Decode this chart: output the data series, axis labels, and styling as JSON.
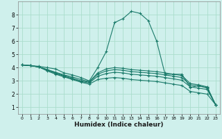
{
  "xlabel": "Humidex (Indice chaleur)",
  "bg_color": "#cff0ec",
  "grid_color": "#aaddcc",
  "line_color": "#1a7a6a",
  "xlim": [
    -0.5,
    23.5
  ],
  "ylim": [
    0.5,
    9.0
  ],
  "xticks": [
    0,
    1,
    2,
    3,
    4,
    5,
    6,
    7,
    8,
    9,
    10,
    11,
    12,
    13,
    14,
    15,
    16,
    17,
    18,
    19,
    20,
    21,
    22,
    23
  ],
  "yticks": [
    1,
    2,
    3,
    4,
    5,
    6,
    7,
    8
  ],
  "lines": [
    {
      "x": [
        0,
        1,
        2,
        3,
        4,
        5,
        6,
        7,
        8,
        9,
        10,
        11,
        12,
        13,
        14,
        15,
        16,
        17,
        18,
        19,
        20,
        21,
        22,
        23
      ],
      "y": [
        4.2,
        4.15,
        4.1,
        4.0,
        3.9,
        3.6,
        3.45,
        3.25,
        3.0,
        4.0,
        5.2,
        7.4,
        7.7,
        8.25,
        8.1,
        7.55,
        6.0,
        3.5,
        3.5,
        3.5,
        2.5,
        2.65,
        2.45,
        1.2
      ]
    },
    {
      "x": [
        0,
        1,
        2,
        3,
        4,
        5,
        6,
        7,
        8,
        9,
        10,
        11,
        12,
        13,
        14,
        15,
        16,
        17,
        18,
        19,
        20,
        21,
        22,
        23
      ],
      "y": [
        4.2,
        4.15,
        4.05,
        3.85,
        3.65,
        3.45,
        3.3,
        3.1,
        2.95,
        3.6,
        3.9,
        4.0,
        3.95,
        3.85,
        3.8,
        3.75,
        3.7,
        3.6,
        3.5,
        3.4,
        2.8,
        2.7,
        2.55,
        1.2
      ]
    },
    {
      "x": [
        0,
        1,
        2,
        3,
        4,
        5,
        6,
        7,
        8,
        9,
        10,
        11,
        12,
        13,
        14,
        15,
        16,
        17,
        18,
        19,
        20,
        21,
        22,
        23
      ],
      "y": [
        4.2,
        4.15,
        4.05,
        3.85,
        3.6,
        3.4,
        3.2,
        3.0,
        2.9,
        3.5,
        3.75,
        3.85,
        3.8,
        3.7,
        3.65,
        3.6,
        3.55,
        3.45,
        3.35,
        3.25,
        2.7,
        2.6,
        2.5,
        1.2
      ]
    },
    {
      "x": [
        0,
        1,
        2,
        3,
        4,
        5,
        6,
        7,
        8,
        9,
        10,
        11,
        12,
        13,
        14,
        15,
        16,
        17,
        18,
        19,
        20,
        21,
        22,
        23
      ],
      "y": [
        4.2,
        4.15,
        4.05,
        3.8,
        3.55,
        3.35,
        3.15,
        2.95,
        2.85,
        3.35,
        3.55,
        3.65,
        3.6,
        3.5,
        3.45,
        3.4,
        3.35,
        3.25,
        3.15,
        3.05,
        2.55,
        2.45,
        2.35,
        1.2
      ]
    },
    {
      "x": [
        0,
        1,
        2,
        3,
        4,
        5,
        6,
        7,
        8,
        9,
        10,
        11,
        12,
        13,
        14,
        15,
        16,
        17,
        18,
        19,
        20,
        21,
        22,
        23
      ],
      "y": [
        4.2,
        4.15,
        4.05,
        3.75,
        3.5,
        3.3,
        3.1,
        2.9,
        2.75,
        3.1,
        3.2,
        3.25,
        3.2,
        3.1,
        3.05,
        3.0,
        2.95,
        2.85,
        2.75,
        2.65,
        2.2,
        2.1,
        2.0,
        1.2
      ]
    }
  ]
}
